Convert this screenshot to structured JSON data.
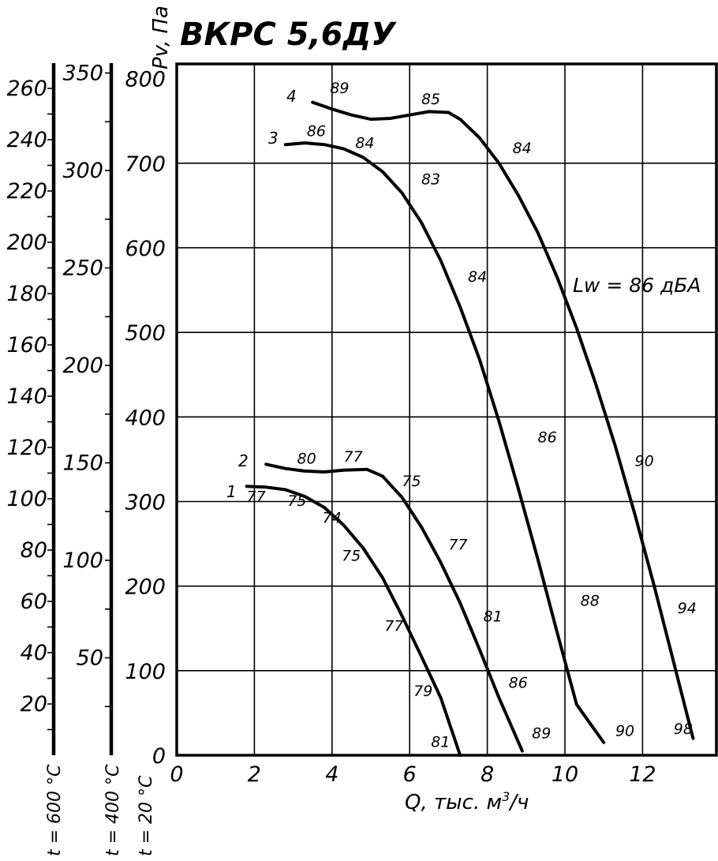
{
  "chart_data": {
    "type": "line",
    "title": "ВКРС 5,6ДУ",
    "ylabel": "Pv, Па",
    "xlabel_main": "Q, тыс. м",
    "xlabel_sup": "3",
    "xlabel_tail": "/ч",
    "xlim": [
      0,
      14
    ],
    "ylim": [
      0,
      800
    ],
    "x_ticks": [
      "0",
      "2",
      "4",
      "6",
      "8",
      "10",
      "12"
    ],
    "y_ticks": [
      "0",
      "100",
      "200",
      "300",
      "400",
      "500",
      "600",
      "700",
      "800"
    ],
    "grid": true,
    "annotation": "Lw = 86 дБА",
    "temp_scales": [
      {
        "label": "t = 600 °C",
        "ticks": [
          "20",
          "40",
          "60",
          "80",
          "100",
          "120",
          "140",
          "160",
          "180",
          "200",
          "220",
          "240",
          "260"
        ]
      },
      {
        "label": "t = 400 °C",
        "ticks": [
          "50",
          "100",
          "150",
          "200",
          "250",
          "300",
          "350"
        ]
      },
      {
        "label": "t = 20 °C"
      }
    ],
    "series": [
      {
        "name": "1",
        "points": [
          [
            1.8,
            318
          ],
          [
            2.3,
            317
          ],
          [
            2.8,
            314
          ],
          [
            3.3,
            306
          ],
          [
            3.8,
            293
          ],
          [
            4.3,
            272
          ],
          [
            4.8,
            245
          ],
          [
            5.3,
            210
          ],
          [
            5.8,
            165
          ],
          [
            6.3,
            117
          ],
          [
            6.8,
            68
          ],
          [
            7.3,
            0
          ]
        ],
        "noise": [
          {
            "x": 1.8,
            "y": 300,
            "label": "77"
          },
          {
            "x": 2.85,
            "y": 295,
            "label": "75"
          },
          {
            "x": 3.75,
            "y": 275,
            "label": "74"
          },
          {
            "x": 4.25,
            "y": 230,
            "label": "75"
          },
          {
            "x": 5.35,
            "y": 147,
            "label": "77"
          },
          {
            "x": 6.1,
            "y": 70,
            "label": "79"
          },
          {
            "x": 6.55,
            "y": 10,
            "label": "81"
          }
        ]
      },
      {
        "name": "2",
        "points": [
          [
            2.3,
            344
          ],
          [
            2.8,
            339
          ],
          [
            3.3,
            336
          ],
          [
            3.8,
            335
          ],
          [
            4.3,
            337
          ],
          [
            4.9,
            338
          ],
          [
            5.3,
            330
          ],
          [
            5.8,
            305
          ],
          [
            6.3,
            270
          ],
          [
            6.8,
            228
          ],
          [
            7.3,
            180
          ],
          [
            7.8,
            125
          ],
          [
            8.3,
            68
          ],
          [
            8.9,
            5
          ]
        ],
        "noise": [
          {
            "x": 3.1,
            "y": 345,
            "label": "80"
          },
          {
            "x": 4.3,
            "y": 347,
            "label": "77"
          },
          {
            "x": 5.8,
            "y": 318,
            "label": "75"
          },
          {
            "x": 7.0,
            "y": 243,
            "label": "77"
          },
          {
            "x": 7.9,
            "y": 158,
            "label": "81"
          },
          {
            "x": 8.55,
            "y": 80,
            "label": "86"
          },
          {
            "x": 9.15,
            "y": 20,
            "label": "89"
          }
        ]
      },
      {
        "name": "3",
        "points": [
          [
            2.8,
            722
          ],
          [
            3.3,
            724
          ],
          [
            3.8,
            722
          ],
          [
            4.3,
            717
          ],
          [
            4.8,
            707
          ],
          [
            5.3,
            690
          ],
          [
            5.8,
            665
          ],
          [
            6.3,
            630
          ],
          [
            6.8,
            585
          ],
          [
            7.3,
            530
          ],
          [
            7.8,
            468
          ],
          [
            8.3,
            395
          ],
          [
            8.8,
            315
          ],
          [
            9.3,
            232
          ],
          [
            9.8,
            145
          ],
          [
            10.3,
            60
          ],
          [
            11.0,
            15
          ]
        ],
        "noise": [
          {
            "x": 3.35,
            "y": 732,
            "label": "86"
          },
          {
            "x": 4.6,
            "y": 718,
            "label": "84"
          },
          {
            "x": 6.3,
            "y": 675,
            "label": "83"
          },
          {
            "x": 7.5,
            "y": 560,
            "label": "84"
          },
          {
            "x": 9.3,
            "y": 370,
            "label": "86"
          },
          {
            "x": 10.4,
            "y": 177,
            "label": "88"
          },
          {
            "x": 11.3,
            "y": 23,
            "label": "90"
          }
        ]
      },
      {
        "name": "4",
        "points": [
          [
            3.5,
            772
          ],
          [
            4.0,
            764
          ],
          [
            4.5,
            757
          ],
          [
            5.0,
            752
          ],
          [
            5.5,
            753
          ],
          [
            6.0,
            757
          ],
          [
            6.5,
            761
          ],
          [
            7.0,
            760
          ],
          [
            7.3,
            752
          ],
          [
            7.8,
            730
          ],
          [
            8.3,
            700
          ],
          [
            8.8,
            662
          ],
          [
            9.3,
            618
          ],
          [
            9.8,
            565
          ],
          [
            10.3,
            505
          ],
          [
            10.8,
            438
          ],
          [
            11.3,
            365
          ],
          [
            11.8,
            285
          ],
          [
            12.3,
            200
          ],
          [
            12.8,
            110
          ],
          [
            13.3,
            20
          ]
        ],
        "noise": [
          {
            "x": 3.95,
            "y": 783,
            "label": "89"
          },
          {
            "x": 6.3,
            "y": 770,
            "label": "85"
          },
          {
            "x": 8.65,
            "y": 712,
            "label": "84"
          },
          {
            "x": 11.8,
            "y": 342,
            "label": "90"
          },
          {
            "x": 12.9,
            "y": 168,
            "label": "94"
          },
          {
            "x": 12.8,
            "y": 25,
            "label": "98"
          }
        ]
      }
    ]
  }
}
